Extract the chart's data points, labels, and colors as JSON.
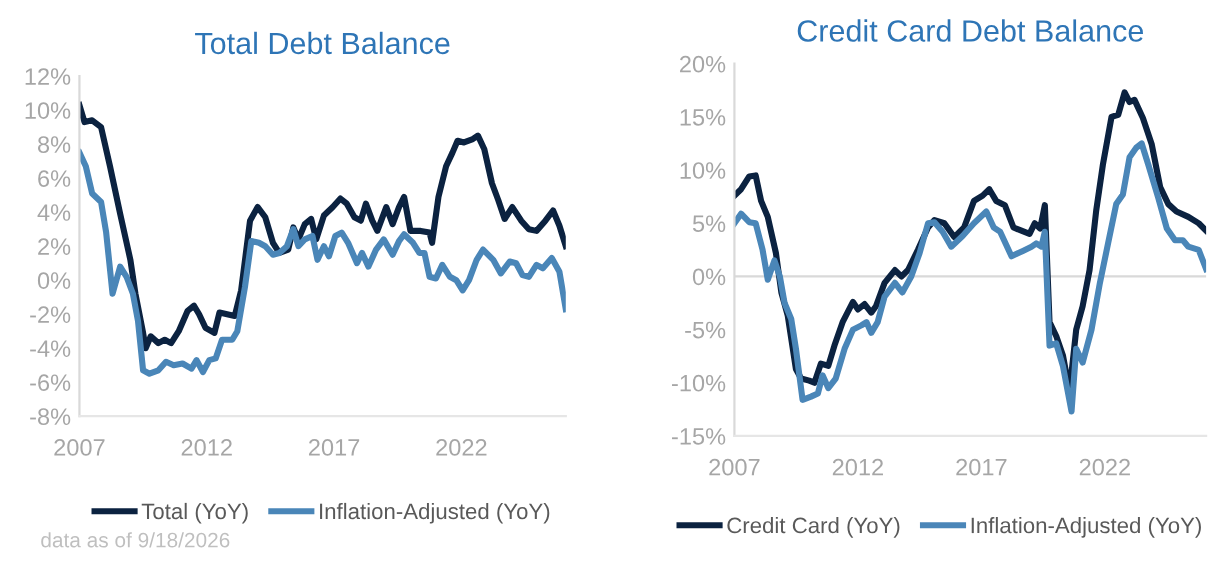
{
  "chart_data": [
    {
      "type": "line",
      "title": "Total Debt Balance",
      "xlim": [
        2007,
        2026.1
      ],
      "xticks": [
        2007,
        2012,
        2017,
        2022
      ],
      "ylim": [
        -8,
        12
      ],
      "yticks": [
        {
          "value": -8,
          "label": "-8%"
        },
        {
          "value": -6,
          "label": "-6%"
        },
        {
          "value": -4,
          "label": "-4%"
        },
        {
          "value": -2,
          "label": "-2%"
        },
        {
          "value": 0,
          "label": "0%"
        },
        {
          "value": 2,
          "label": "2%"
        },
        {
          "value": 4,
          "label": "4%"
        },
        {
          "value": 6,
          "label": "6%"
        },
        {
          "value": 8,
          "label": "8%"
        },
        {
          "value": 10,
          "label": "10%"
        },
        {
          "value": 12,
          "label": "12%"
        }
      ],
      "legend": "bottom",
      "grid": false,
      "annotations": [
        "data as of 9/18/2026"
      ],
      "series": [
        {
          "name": "Total (YoY)",
          "color": "#0b2240",
          "x": [
            2007.0,
            2007.2,
            2007.5,
            2007.85,
            2008.2,
            2008.6,
            2009.0,
            2009.2,
            2009.5,
            2009.6,
            2009.8,
            2010.1,
            2010.35,
            2010.6,
            2010.9,
            2011.25,
            2011.5,
            2011.7,
            2011.95,
            2012.3,
            2012.5,
            2012.8,
            2013.1,
            2013.35,
            2013.7,
            2014.0,
            2014.3,
            2014.6,
            2014.85,
            2015.2,
            2015.4,
            2015.6,
            2015.85,
            2016.1,
            2016.3,
            2016.6,
            2016.95,
            2017.25,
            2017.5,
            2017.8,
            2018.05,
            2018.25,
            2018.5,
            2018.7,
            2019.05,
            2019.3,
            2019.55,
            2019.75,
            2020.0,
            2020.4,
            2020.75,
            2020.85,
            2021.1,
            2021.4,
            2021.65,
            2021.85,
            2022.1,
            2022.45,
            2022.65,
            2022.9,
            2023.2,
            2023.45,
            2023.7,
            2024.0,
            2024.35,
            2024.65,
            2024.95,
            2025.3,
            2025.6,
            2025.85,
            2026.1
          ],
          "values": [
            10.3,
            9.3,
            9.4,
            9.0,
            6.7,
            3.9,
            1.2,
            -0.8,
            -3.1,
            -4.0,
            -3.3,
            -3.7,
            -3.5,
            -3.7,
            -3.0,
            -1.8,
            -1.5,
            -2.0,
            -2.8,
            -3.1,
            -1.9,
            -2.0,
            -2.1,
            -0.6,
            3.5,
            4.3,
            3.7,
            2.2,
            1.6,
            1.8,
            3.1,
            2.4,
            3.3,
            3.6,
            2.4,
            3.8,
            4.3,
            4.8,
            4.5,
            3.7,
            3.5,
            4.5,
            3.5,
            2.9,
            4.3,
            3.3,
            4.3,
            4.9,
            2.9,
            2.9,
            2.8,
            2.2,
            4.9,
            6.7,
            7.5,
            8.2,
            8.1,
            8.3,
            8.5,
            7.7,
            5.7,
            4.7,
            3.6,
            4.3,
            3.5,
            3.0,
            2.9,
            3.5,
            4.1,
            3.2,
            2.0
          ]
        },
        {
          "name": "Inflation-Adjusted (YoY)",
          "color": "#4a86b8",
          "x": [
            2007.0,
            2007.25,
            2007.5,
            2007.85,
            2008.05,
            2008.3,
            2008.6,
            2008.85,
            2009.1,
            2009.3,
            2009.5,
            2009.75,
            2010.1,
            2010.4,
            2010.7,
            2011.05,
            2011.4,
            2011.6,
            2011.85,
            2012.1,
            2012.35,
            2012.6,
            2013.0,
            2013.2,
            2013.5,
            2013.75,
            2014.05,
            2014.3,
            2014.6,
            2014.85,
            2015.15,
            2015.4,
            2015.6,
            2015.85,
            2016.15,
            2016.35,
            2016.6,
            2016.8,
            2017.05,
            2017.3,
            2017.55,
            2017.9,
            2018.1,
            2018.35,
            2018.65,
            2018.95,
            2019.3,
            2019.55,
            2019.75,
            2020.1,
            2020.35,
            2020.55,
            2020.75,
            2021.0,
            2021.25,
            2021.55,
            2021.8,
            2022.05,
            2022.3,
            2022.6,
            2022.85,
            2023.25,
            2023.55,
            2023.9,
            2024.15,
            2024.4,
            2024.65,
            2024.95,
            2025.2,
            2025.55,
            2025.85,
            2026.1
          ],
          "values": [
            7.5,
            6.7,
            5.1,
            4.6,
            2.8,
            -0.8,
            0.8,
            0.2,
            -0.8,
            -2.4,
            -5.3,
            -5.5,
            -5.3,
            -4.8,
            -5.0,
            -4.9,
            -5.2,
            -4.7,
            -5.4,
            -4.7,
            -4.6,
            -3.5,
            -3.5,
            -3.0,
            -0.4,
            2.3,
            2.2,
            2.0,
            1.5,
            1.6,
            2.0,
            3.0,
            2.0,
            2.4,
            2.6,
            1.2,
            2.0,
            1.4,
            2.6,
            2.8,
            2.2,
            1.0,
            1.6,
            0.8,
            1.8,
            2.4,
            1.5,
            2.3,
            2.7,
            2.2,
            1.6,
            1.6,
            0.2,
            0.1,
            0.9,
            0.2,
            0.0,
            -0.6,
            0.0,
            1.2,
            1.8,
            1.2,
            0.4,
            1.1,
            1.0,
            0.3,
            0.2,
            0.9,
            0.7,
            1.3,
            0.5,
            -1.7
          ]
        }
      ]
    },
    {
      "type": "line",
      "title": "Credit Card Debt Balance",
      "xlim": [
        2007,
        2026.1
      ],
      "xticks": [
        2007,
        2012,
        2017,
        2022
      ],
      "ylim": [
        -15,
        20
      ],
      "yticks": [
        {
          "value": -15,
          "label": "-15%"
        },
        {
          "value": -10,
          "label": "-10%"
        },
        {
          "value": -5,
          "label": "-5%"
        },
        {
          "value": 0,
          "label": "0%"
        },
        {
          "value": 5,
          "label": "5%"
        },
        {
          "value": 10,
          "label": "10%"
        },
        {
          "value": 15,
          "label": "15%"
        },
        {
          "value": 20,
          "label": "20%"
        }
      ],
      "legend": "bottom",
      "grid": false,
      "ref_lines": [
        {
          "axis": "y",
          "value": 0,
          "label": null,
          "color": "#d9d9d9"
        }
      ],
      "series": [
        {
          "name": "Credit Card (YoY)",
          "color": "#0b2240",
          "x": [
            2007.0,
            2007.27,
            2007.6,
            2007.86,
            2008.08,
            2008.35,
            2008.68,
            2008.9,
            2009.16,
            2009.49,
            2009.7,
            2010.03,
            2010.24,
            2010.5,
            2010.8,
            2011.05,
            2011.38,
            2011.8,
            2012.0,
            2012.27,
            2012.54,
            2012.73,
            2013.08,
            2013.5,
            2013.76,
            2014.03,
            2014.43,
            2014.84,
            2015.1,
            2015.5,
            2015.9,
            2016.3,
            2016.7,
            2017.05,
            2017.32,
            2017.6,
            2017.95,
            2018.3,
            2018.62,
            2018.95,
            2019.16,
            2019.38,
            2019.57,
            2019.76,
            2020.03,
            2020.3,
            2020.57,
            2020.84,
            2021.1,
            2021.38,
            2021.65,
            2021.92,
            2022.27,
            2022.54,
            2022.8,
            2023.0,
            2023.2,
            2023.54,
            2023.9,
            2024.24,
            2024.57,
            2024.9,
            2025.38,
            2025.8,
            2026.1
          ],
          "values": [
            7.6,
            8.2,
            9.4,
            9.5,
            7.1,
            5.6,
            2.2,
            -1.5,
            -3.7,
            -8.7,
            -9.6,
            -9.8,
            -10.0,
            -8.2,
            -8.4,
            -6.5,
            -4.3,
            -2.4,
            -3.1,
            -2.6,
            -3.4,
            -2.8,
            -0.6,
            0.6,
            0.0,
            0.6,
            2.5,
            4.6,
            5.3,
            5.0,
            3.7,
            4.6,
            7.1,
            7.6,
            8.2,
            7.1,
            6.7,
            4.6,
            4.3,
            4.0,
            5.0,
            4.5,
            6.7,
            -4.3,
            -5.6,
            -7.4,
            -10.8,
            -5.0,
            -2.8,
            0.6,
            6.2,
            10.5,
            15.0,
            15.2,
            17.3,
            16.4,
            16.6,
            14.9,
            12.4,
            8.4,
            6.8,
            6.1,
            5.6,
            5.0,
            4.3
          ]
        },
        {
          "name": "Inflation-Adjusted (YoY)",
          "color": "#4a86b8",
          "x": [
            2007.0,
            2007.27,
            2007.6,
            2007.86,
            2008.14,
            2008.35,
            2008.62,
            2008.84,
            2009.03,
            2009.3,
            2009.49,
            2009.76,
            2010.1,
            2010.38,
            2010.57,
            2010.8,
            2011.1,
            2011.46,
            2011.8,
            2012.14,
            2012.35,
            2012.54,
            2012.8,
            2013.08,
            2013.5,
            2013.8,
            2014.16,
            2014.5,
            2014.84,
            2015.1,
            2015.43,
            2015.78,
            2016.24,
            2016.7,
            2017.2,
            2017.5,
            2017.76,
            2018.22,
            2018.68,
            2019.03,
            2019.22,
            2019.43,
            2019.57,
            2019.76,
            2020.03,
            2020.3,
            2020.65,
            2020.84,
            2021.1,
            2021.46,
            2021.8,
            2022.13,
            2022.46,
            2022.73,
            2023.0,
            2023.27,
            2023.49,
            2023.76,
            2024.16,
            2024.51,
            2024.84,
            2025.16,
            2025.38,
            2025.8,
            2026.1
          ],
          "values": [
            5.0,
            5.9,
            5.1,
            5.0,
            2.5,
            -0.3,
            1.5,
            0.0,
            -2.5,
            -4.0,
            -6.8,
            -11.6,
            -11.3,
            -11.0,
            -9.3,
            -10.5,
            -9.6,
            -6.8,
            -5.0,
            -4.6,
            -4.3,
            -5.3,
            -4.3,
            -1.9,
            -0.6,
            -1.5,
            0.0,
            2.2,
            5.0,
            5.1,
            4.2,
            2.8,
            3.8,
            5.0,
            6.1,
            4.6,
            4.2,
            1.9,
            2.4,
            2.8,
            3.1,
            2.8,
            4.2,
            -6.5,
            -6.3,
            -8.4,
            -12.7,
            -6.8,
            -8.1,
            -5.0,
            -0.6,
            3.1,
            6.8,
            7.7,
            11.2,
            12.1,
            12.5,
            10.5,
            7.4,
            4.5,
            3.4,
            3.4,
            2.8,
            2.5,
            0.7
          ]
        }
      ]
    }
  ]
}
